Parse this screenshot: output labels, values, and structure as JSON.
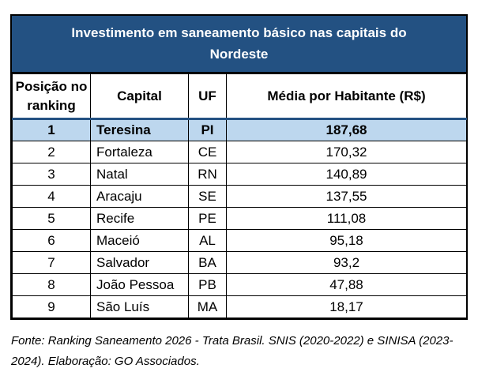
{
  "title": "Investimento em saneamento básico nas capitais do Nordeste",
  "table": {
    "columns": [
      "Posição no ranking",
      "Capital",
      "UF",
      "Média por Habitante (R$)"
    ],
    "rows": [
      [
        "1",
        "Teresina",
        "PI",
        "187,68"
      ],
      [
        "2",
        "Fortaleza",
        "CE",
        "170,32"
      ],
      [
        "3",
        "Natal",
        "RN",
        "140,89"
      ],
      [
        "4",
        "Aracaju",
        "SE",
        "137,55"
      ],
      [
        "5",
        "Recife",
        "PE",
        "111,08"
      ],
      [
        "6",
        "Maceió",
        "AL",
        "95,18"
      ],
      [
        "7",
        "Salvador",
        "BA",
        "93,2"
      ],
      [
        "8",
        "João Pessoa",
        "PB",
        "47,88"
      ],
      [
        "9",
        "São Luís",
        "MA",
        "18,17"
      ]
    ],
    "highlighted_row_index": 0
  },
  "footer": "Fonte: Ranking Saneamento 2026 - Trata Brasil. SNIS (2020-2022) e SINISA (2023-2024). Elaboração: GO Associados.",
  "colors": {
    "title_bg": "#235182",
    "title_text": "#FFFFFF",
    "highlight_bg": "#BDD7EE",
    "highlight_top_border": "#235182",
    "border": "#000000"
  },
  "chart_data": {
    "type": "table",
    "title": "Investimento em saneamento básico nas capitais do Nordeste",
    "columns": [
      "Posição no ranking",
      "Capital",
      "UF",
      "Média por Habitante (R$)"
    ],
    "categories": [
      "Teresina",
      "Fortaleza",
      "Natal",
      "Aracaju",
      "Recife",
      "Maceió",
      "Salvador",
      "João Pessoa",
      "São Luís"
    ],
    "uf": [
      "PI",
      "CE",
      "RN",
      "SE",
      "PE",
      "AL",
      "BA",
      "PB",
      "MA"
    ],
    "ranking": [
      1,
      2,
      3,
      4,
      5,
      6,
      7,
      8,
      9
    ],
    "values": [
      187.68,
      170.32,
      140.89,
      137.55,
      111.08,
      95.18,
      93.2,
      47.88,
      18.17
    ],
    "values_display": [
      "187,68",
      "170,32",
      "140,89",
      "137,55",
      "111,08",
      "95,18",
      "93,2",
      "47,88",
      "18,17"
    ],
    "highlighted_category": "Teresina",
    "source": "Fonte: Ranking Saneamento 2026 - Trata Brasil. SNIS (2020-2022) e SINISA (2023-2024). Elaboração: GO Associados."
  }
}
